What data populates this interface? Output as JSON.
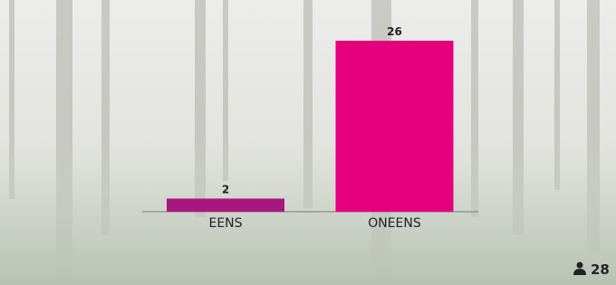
{
  "chart_data": {
    "type": "bar",
    "categories": [
      "EENS",
      "ONEENS"
    ],
    "values": [
      2,
      26
    ],
    "colors": [
      "#a8177f",
      "#e6007e"
    ]
  },
  "respondents": 28
}
